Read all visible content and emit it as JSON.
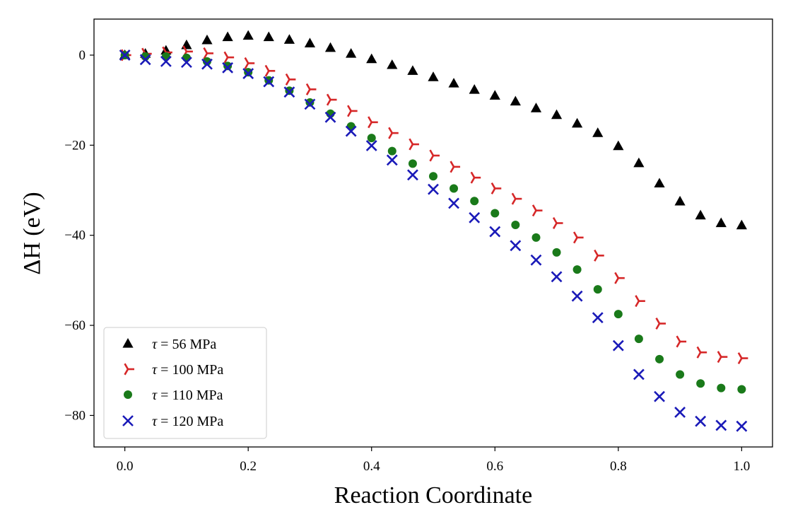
{
  "chart_data": {
    "type": "scatter",
    "xlabel": "Reaction Coordinate",
    "ylabel": "ΔH (eV)",
    "xlim": [
      -0.05,
      1.05
    ],
    "ylim": [
      -87,
      8
    ],
    "xticks": [
      0.0,
      0.2,
      0.4,
      0.6,
      0.8,
      1.0
    ],
    "xtick_labels": [
      "0.0",
      "0.2",
      "0.4",
      "0.6",
      "0.8",
      "1.0"
    ],
    "yticks": [
      0,
      -20,
      -40,
      -60,
      -80
    ],
    "ytick_labels": [
      "0",
      "−20",
      "−40",
      "−60",
      "−80"
    ],
    "grid": false,
    "legend_position": "lower-left",
    "x": [
      0.0,
      0.0333,
      0.0667,
      0.1,
      0.1333,
      0.1667,
      0.2,
      0.2333,
      0.2667,
      0.3,
      0.3333,
      0.3667,
      0.4,
      0.4333,
      0.4667,
      0.5,
      0.5333,
      0.5667,
      0.6,
      0.6333,
      0.6667,
      0.7,
      0.7333,
      0.7667,
      0.8,
      0.8333,
      0.8667,
      0.9,
      0.9333,
      0.9667,
      1.0
    ],
    "series": [
      {
        "name": "τ = 56 MPa",
        "tau_symbol": "τ",
        "label_rest": " = 56 MPa",
        "marker": "triangle",
        "color": "#000000",
        "values": [
          0,
          0.3,
          1.0,
          2.2,
          3.3,
          4.0,
          4.3,
          4.0,
          3.4,
          2.6,
          1.6,
          0.3,
          -0.9,
          -2.2,
          -3.5,
          -4.9,
          -6.3,
          -7.7,
          -9.0,
          -10.3,
          -11.8,
          -13.3,
          -15.2,
          -17.3,
          -20.2,
          -24.0,
          -28.5,
          -32.5,
          -35.6,
          -37.3,
          -37.8
        ]
      },
      {
        "name": "τ = 100 MPa",
        "tau_symbol": "τ",
        "label_rest": " = 100 MPa",
        "marker": "tri_right",
        "color": "#d62728",
        "values": [
          0,
          0.3,
          0.6,
          0.8,
          0.4,
          -0.5,
          -1.8,
          -3.5,
          -5.4,
          -7.6,
          -9.9,
          -12.4,
          -14.9,
          -17.3,
          -19.8,
          -22.3,
          -24.8,
          -27.2,
          -29.6,
          -31.9,
          -34.5,
          -37.3,
          -40.5,
          -44.5,
          -49.5,
          -54.6,
          -59.6,
          -63.6,
          -66.0,
          -67.0,
          -67.3
        ]
      },
      {
        "name": "τ = 110 MPa",
        "tau_symbol": "τ",
        "label_rest": " = 110 MPa",
        "marker": "circle",
        "color": "#1a7a1a",
        "values": [
          0,
          -0.3,
          -0.3,
          -0.6,
          -1.4,
          -2.4,
          -3.8,
          -5.6,
          -7.9,
          -10.5,
          -13.0,
          -15.8,
          -18.4,
          -21.3,
          -24.1,
          -26.9,
          -29.6,
          -32.4,
          -35.1,
          -37.7,
          -40.5,
          -43.8,
          -47.6,
          -52.0,
          -57.5,
          -63.0,
          -67.5,
          -70.9,
          -72.9,
          -73.9,
          -74.2
        ]
      },
      {
        "name": "τ = 120 MPa",
        "tau_symbol": "τ",
        "label_rest": " = 120 MPa",
        "marker": "x",
        "color": "#1a1ab8",
        "values": [
          0,
          -1.0,
          -1.4,
          -1.6,
          -2.0,
          -2.8,
          -4.1,
          -5.9,
          -8.2,
          -10.9,
          -13.8,
          -16.9,
          -20.1,
          -23.3,
          -26.6,
          -29.8,
          -32.9,
          -36.1,
          -39.2,
          -42.3,
          -45.5,
          -49.2,
          -53.5,
          -58.3,
          -64.5,
          -70.9,
          -75.8,
          -79.3,
          -81.3,
          -82.2,
          -82.4
        ]
      }
    ]
  }
}
